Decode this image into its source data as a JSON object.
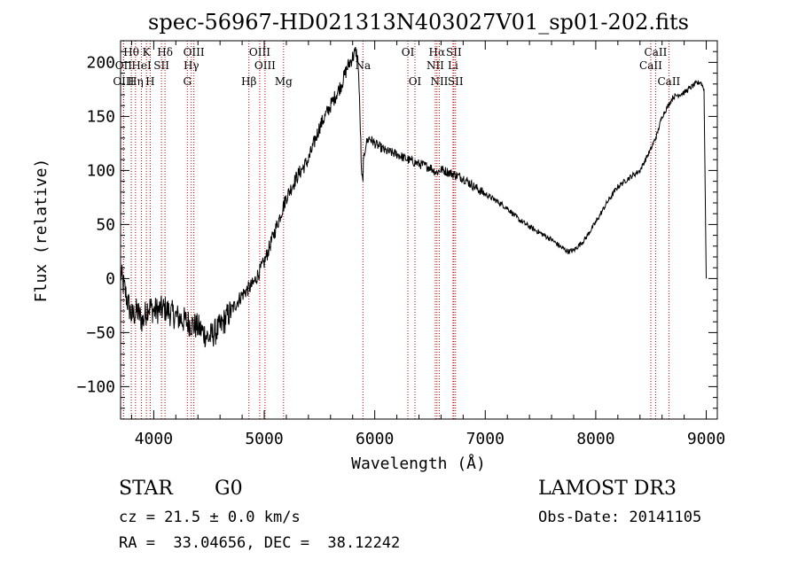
{
  "chart_data": {
    "type": "line",
    "title": "spec-56967-HD021313N403027V01_sp01-202.fits",
    "xlabel": "Wavelength (Å)",
    "ylabel": "Flux (relative)",
    "xlim": [
      3700,
      9100
    ],
    "ylim": [
      -130,
      220
    ],
    "x_ticks": [
      4000,
      5000,
      6000,
      7000,
      8000,
      9000
    ],
    "x_tick_labels": [
      "4000",
      "5000",
      "6000",
      "7000",
      "8000",
      "9000"
    ],
    "y_ticks": [
      -100,
      -50,
      0,
      50,
      100,
      150,
      200
    ],
    "y_tick_labels": [
      "−100",
      "−50",
      "0",
      "50",
      "100",
      "150",
      "200"
    ],
    "series": [
      {
        "name": "flux",
        "x": [
          3700,
          3760,
          3800,
          3850,
          3900,
          3950,
          4000,
          4100,
          4200,
          4300,
          4400,
          4500,
          4600,
          4700,
          4800,
          4900,
          5000,
          5100,
          5200,
          5300,
          5400,
          5500,
          5600,
          5700,
          5750,
          5800,
          5830,
          5850,
          5870,
          5880,
          5890,
          5900,
          5920,
          5950,
          6000,
          6100,
          6200,
          6300,
          6400,
          6500,
          6560,
          6600,
          6700,
          6800,
          6900,
          7000,
          7100,
          7200,
          7300,
          7400,
          7500,
          7600,
          7700,
          7750,
          7800,
          7900,
          8000,
          8100,
          8200,
          8300,
          8400,
          8500,
          8550,
          8600,
          8700,
          8800,
          8900,
          8950,
          8980,
          9000
        ],
        "y": [
          5,
          -20,
          -35,
          -30,
          -40,
          -25,
          -30,
          -28,
          -35,
          -40,
          -45,
          -55,
          -45,
          -30,
          -15,
          -5,
          15,
          45,
          75,
          95,
          110,
          140,
          160,
          180,
          195,
          205,
          210,
          200,
          140,
          95,
          90,
          110,
          125,
          130,
          125,
          118,
          115,
          110,
          106,
          103,
          98,
          101,
          97,
          93,
          85,
          78,
          72,
          65,
          55,
          48,
          42,
          36,
          28,
          25,
          26,
          36,
          52,
          70,
          85,
          93,
          100,
          120,
          132,
          150,
          168,
          172,
          180,
          182,
          175,
          0
        ]
      }
    ],
    "lines": [
      {
        "label": "Hθ",
        "x": 3797,
        "row": 1
      },
      {
        "label": "OII",
        "x": 3727,
        "row": 2
      },
      {
        "label": "OIII",
        "x": 3727,
        "row": 3
      },
      {
        "label": "Hη",
        "x": 3835,
        "row": 3
      },
      {
        "label": "K",
        "x": 3934,
        "row": 1
      },
      {
        "label": "H",
        "x": 3968,
        "row": 3
      },
      {
        "label": "HeI",
        "x": 3889,
        "row": 2
      },
      {
        "label": "SII",
        "x": 4070,
        "row": 2
      },
      {
        "label": "Hδ",
        "x": 4102,
        "row": 1
      },
      {
        "label": "OIII",
        "x": 4363,
        "row": 1
      },
      {
        "label": "Hγ",
        "x": 4340,
        "row": 2
      },
      {
        "label": "G",
        "x": 4304,
        "row": 3
      },
      {
        "label": "OIII",
        "x": 4959,
        "row": 1
      },
      {
        "label": "OIII",
        "x": 5007,
        "row": 2
      },
      {
        "label": "Hβ",
        "x": 4861,
        "row": 3
      },
      {
        "label": "Mg",
        "x": 5175,
        "row": 3
      },
      {
        "label": "Na",
        "x": 5893,
        "row": 2
      },
      {
        "label": "OI",
        "x": 6300,
        "row": 1
      },
      {
        "label": "OI",
        "x": 6364,
        "row": 3
      },
      {
        "label": "Hα",
        "x": 6563,
        "row": 1
      },
      {
        "label": "SII",
        "x": 6716,
        "row": 1
      },
      {
        "label": "NII",
        "x": 6548,
        "row": 2
      },
      {
        "label": "Li",
        "x": 6708,
        "row": 2
      },
      {
        "label": "NII",
        "x": 6584,
        "row": 3
      },
      {
        "label": "SII",
        "x": 6731,
        "row": 3
      },
      {
        "label": "CaII",
        "x": 8542,
        "row": 1
      },
      {
        "label": "CaII",
        "x": 8498,
        "row": 2
      },
      {
        "label": "CaII",
        "x": 8662,
        "row": 3
      }
    ]
  },
  "info": {
    "object_class": "STAR",
    "subclass": "G0",
    "survey": "LAMOST DR3",
    "cz": "cz = 21.5 ± 0.0 km/s",
    "obs_date": "Obs-Date: 20141105",
    "coords": "RA =  33.04656, DEC =  38.12242"
  },
  "colors": {
    "line_marker": "#c00000",
    "spectrum": "#000000"
  }
}
